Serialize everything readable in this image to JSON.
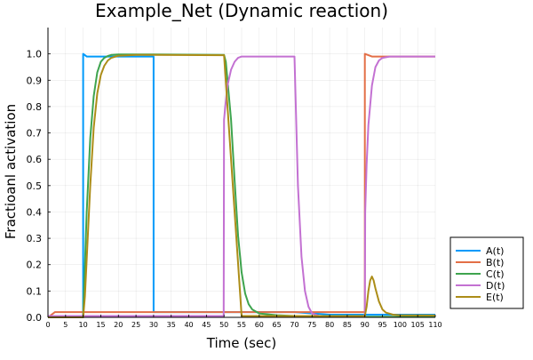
{
  "chart_data": {
    "type": "line",
    "title": "Example_Net (Dynamic reaction)",
    "xlabel": "Time (sec)",
    "ylabel": "Fractioanl activation",
    "xlim": [
      0,
      110
    ],
    "ylim": [
      0,
      1.1
    ],
    "xticks": [
      0,
      5,
      10,
      15,
      20,
      25,
      30,
      35,
      40,
      45,
      50,
      55,
      60,
      65,
      70,
      75,
      80,
      85,
      90,
      95,
      100,
      105,
      110
    ],
    "yticks": [
      0.0,
      0.1,
      0.2,
      0.3,
      0.4,
      0.5,
      0.6,
      0.7,
      0.8,
      0.9,
      1.0
    ],
    "grid": true,
    "legend_position": "bottom-right-outside",
    "series": [
      {
        "name": "A(t)",
        "color": "#009AFA",
        "x": [
          0,
          10,
          10,
          11,
          13,
          15,
          30,
          30,
          50,
          70,
          80,
          110
        ],
        "y": [
          0.0,
          0.0,
          1.0,
          0.99,
          0.99,
          0.99,
          0.99,
          0.02,
          0.02,
          0.02,
          0.01,
          0.01
        ]
      },
      {
        "name": "B(t)",
        "color": "#E36F47",
        "x": [
          0,
          1,
          2,
          30,
          50,
          70,
          70,
          90,
          90,
          92,
          94,
          96,
          100,
          110
        ],
        "y": [
          0.0,
          0.01,
          0.02,
          0.02,
          0.02,
          0.02,
          0.02,
          0.02,
          1.0,
          0.99,
          0.99,
          0.99,
          0.99,
          0.99
        ]
      },
      {
        "name": "C(t)",
        "color": "#3EA44E",
        "x": [
          0,
          10,
          10.5,
          11,
          12,
          13,
          14,
          15,
          16,
          17,
          18,
          20,
          25,
          30,
          40,
          50,
          50.5,
          51,
          52,
          53,
          54,
          55,
          56,
          57,
          58,
          60,
          65,
          70,
          80,
          90,
          110
        ],
        "y": [
          0.0,
          0.0,
          0.2,
          0.4,
          0.68,
          0.84,
          0.93,
          0.97,
          0.985,
          0.992,
          0.996,
          0.998,
          0.998,
          0.998,
          0.997,
          0.996,
          0.97,
          0.9,
          0.75,
          0.52,
          0.31,
          0.17,
          0.09,
          0.05,
          0.03,
          0.015,
          0.008,
          0.005,
          0.003,
          0.002,
          0.002
        ]
      },
      {
        "name": "D(t)",
        "color": "#C371D2",
        "x": [
          0,
          49.9,
          50,
          50.5,
          51,
          52,
          53,
          54,
          55,
          57,
          60,
          70,
          70.5,
          71,
          72,
          73,
          74,
          75,
          77,
          80,
          90,
          90.1,
          90.5,
          91,
          92,
          93,
          94,
          95,
          97,
          100,
          110
        ],
        "y": [
          0.005,
          0.005,
          0.75,
          0.82,
          0.88,
          0.94,
          0.97,
          0.985,
          0.99,
          0.99,
          0.99,
          0.99,
          0.75,
          0.5,
          0.23,
          0.1,
          0.04,
          0.015,
          0.005,
          0.003,
          0.003,
          0.4,
          0.58,
          0.73,
          0.88,
          0.95,
          0.975,
          0.985,
          0.99,
          0.99,
          0.99
        ]
      },
      {
        "name": "E(t)",
        "color": "#AC8D18",
        "x": [
          0,
          10,
          10.5,
          11,
          12,
          13,
          14,
          15,
          16,
          17,
          18,
          20,
          25,
          30,
          50,
          55,
          90,
          90.5,
          91,
          91.5,
          92,
          92.5,
          93,
          94,
          95,
          96,
          98,
          100,
          110
        ],
        "y": [
          0.0,
          0.0,
          0.08,
          0.22,
          0.5,
          0.72,
          0.85,
          0.92,
          0.955,
          0.975,
          0.985,
          0.993,
          0.996,
          0.996,
          0.995,
          0.005,
          0.005,
          0.04,
          0.1,
          0.14,
          0.155,
          0.14,
          0.11,
          0.06,
          0.03,
          0.018,
          0.01,
          0.008,
          0.007
        ]
      }
    ]
  }
}
